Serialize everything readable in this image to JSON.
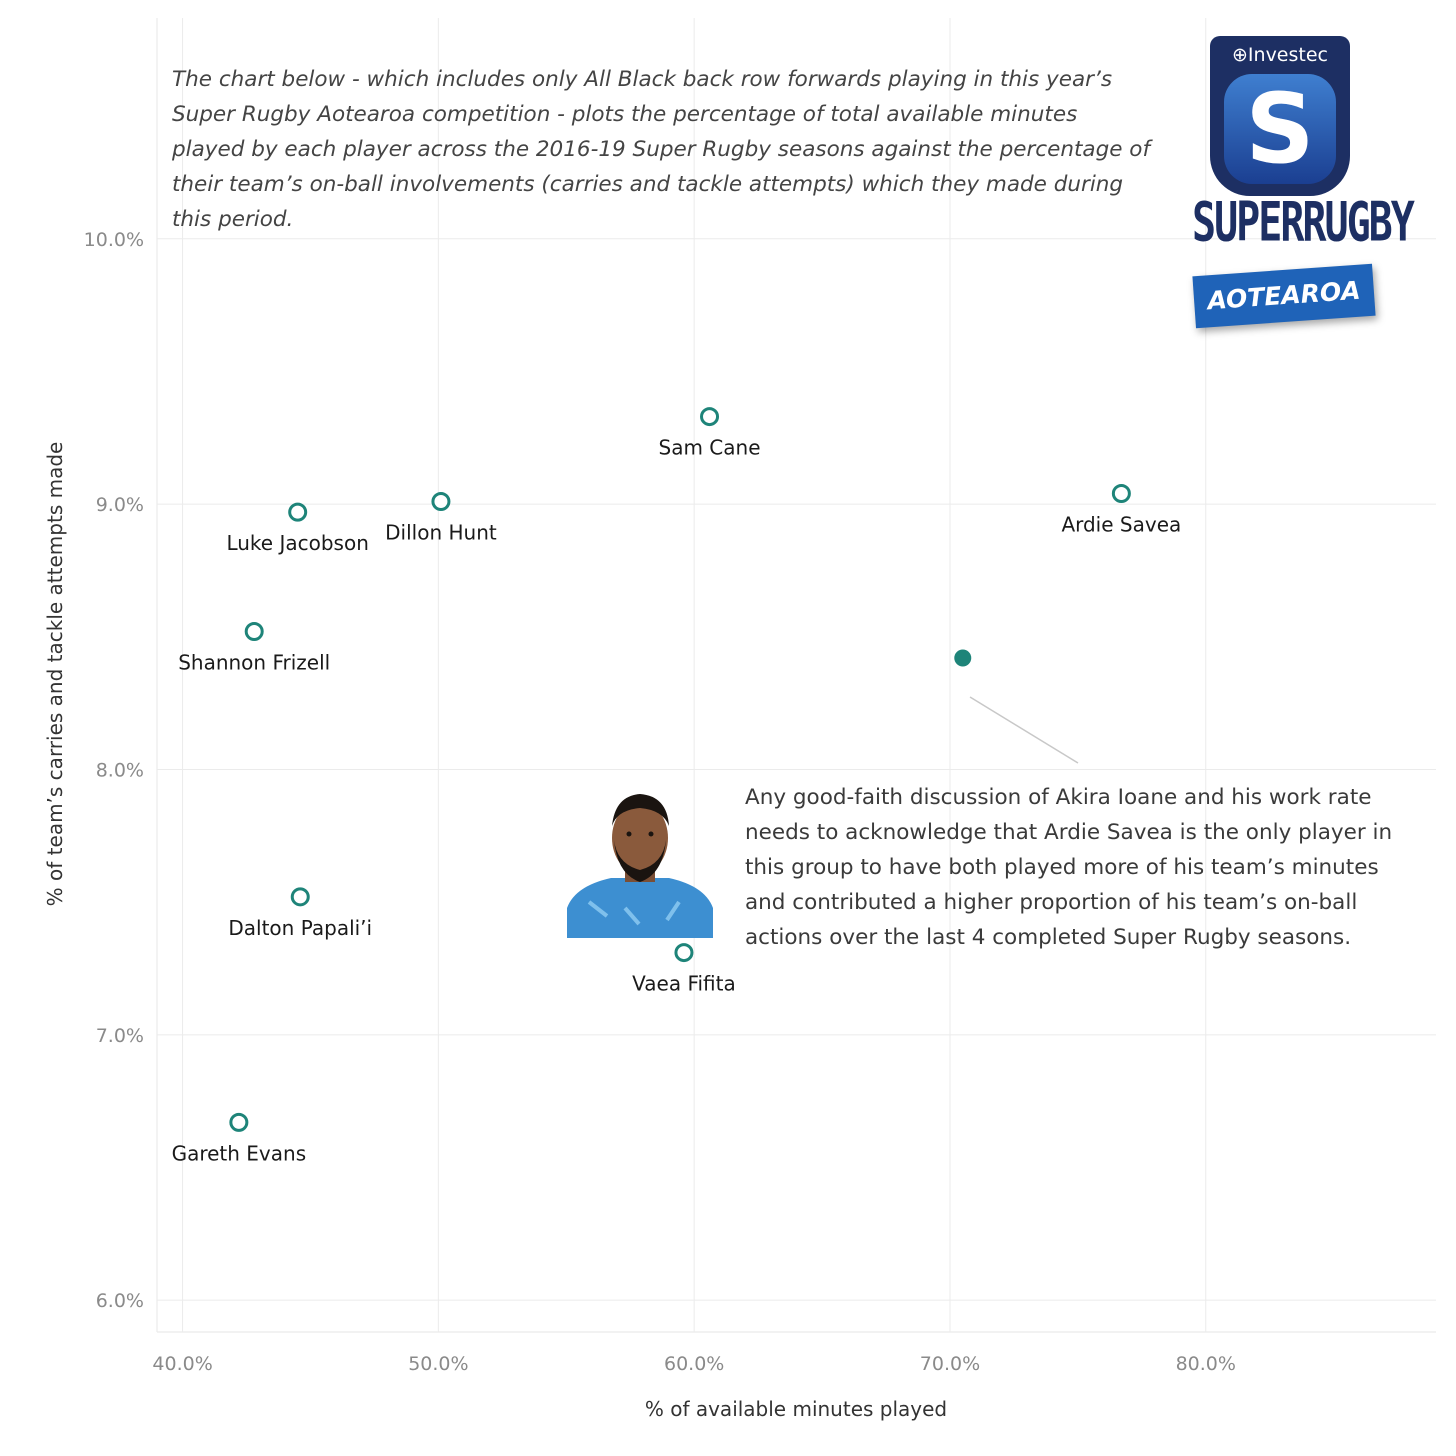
{
  "intro_text": "The chart below - which includes only All Black back row forwards playing in this year’s Super Rugby Aotearoa competition - plots the percentage of total available minutes played by each player across the 2016-19 Super Rugby seasons against the percentage of their team’s on-ball involvements (carries and tackle attempts) which they made during this period.",
  "annotation_text": "Any good-faith discussion of Akira Ioane and his work rate needs to acknowledge that Ardie Savea is the only player in this group to have both played more of his team’s minutes and contributed a higher proportion of his team’s on-ball actions over the last 4 completed Super Rugby seasons.",
  "logo": {
    "brand": "⊕Investec",
    "wordmark": "SUPERRUGBY",
    "banner": "AOTEAROA",
    "colors": {
      "navy": "#1d2f63",
      "blue": "#1f63b8"
    }
  },
  "photo": {
    "icon": "player-headshot-icon",
    "shirt_color": "#3d8fd1"
  },
  "colors": {
    "point": "#1e8479",
    "grid": "#ebebeb",
    "leader": "#c8c8c8"
  },
  "chart_data": {
    "type": "scatter",
    "xlabel": "% of available minutes played",
    "ylabel": "% of team’s carries and tackle attempts made",
    "xlim": [
      39.0,
      89.0
    ],
    "ylim": [
      5.88,
      10.9
    ],
    "x_ticks": [
      40,
      50,
      60,
      70,
      80
    ],
    "y_ticks": [
      6,
      7,
      8,
      9,
      10
    ],
    "x_tick_labels": [
      "40.0%",
      "50.0%",
      "60.0%",
      "70.0%",
      "80.0%"
    ],
    "y_tick_labels": [
      "6.0%",
      "7.0%",
      "8.0%",
      "9.0%",
      "10.0%"
    ],
    "grid": true,
    "points": [
      {
        "name": "Sam Cane",
        "x": 60.6,
        "y": 9.33,
        "filled": false,
        "label_pos": "below"
      },
      {
        "name": "Ardie Savea",
        "x": 76.7,
        "y": 9.04,
        "filled": false,
        "label_pos": "below"
      },
      {
        "name": "Dillon Hunt",
        "x": 50.1,
        "y": 9.01,
        "filled": false,
        "label_pos": "below"
      },
      {
        "name": "Luke Jacobson",
        "x": 44.5,
        "y": 8.97,
        "filled": false,
        "label_pos": "below"
      },
      {
        "name": "Shannon Frizell",
        "x": 42.8,
        "y": 8.52,
        "filled": false,
        "label_pos": "below"
      },
      {
        "name": "Dalton Papali’i",
        "x": 44.6,
        "y": 7.52,
        "filled": false,
        "label_pos": "below"
      },
      {
        "name": "Vaea Fifita",
        "x": 59.6,
        "y": 7.31,
        "filled": false,
        "label_pos": "below"
      },
      {
        "name": "Gareth Evans",
        "x": 42.2,
        "y": 6.67,
        "filled": false,
        "label_pos": "below"
      },
      {
        "name": "",
        "x": 70.5,
        "y": 8.42,
        "filled": true,
        "label_pos": "none"
      }
    ]
  }
}
